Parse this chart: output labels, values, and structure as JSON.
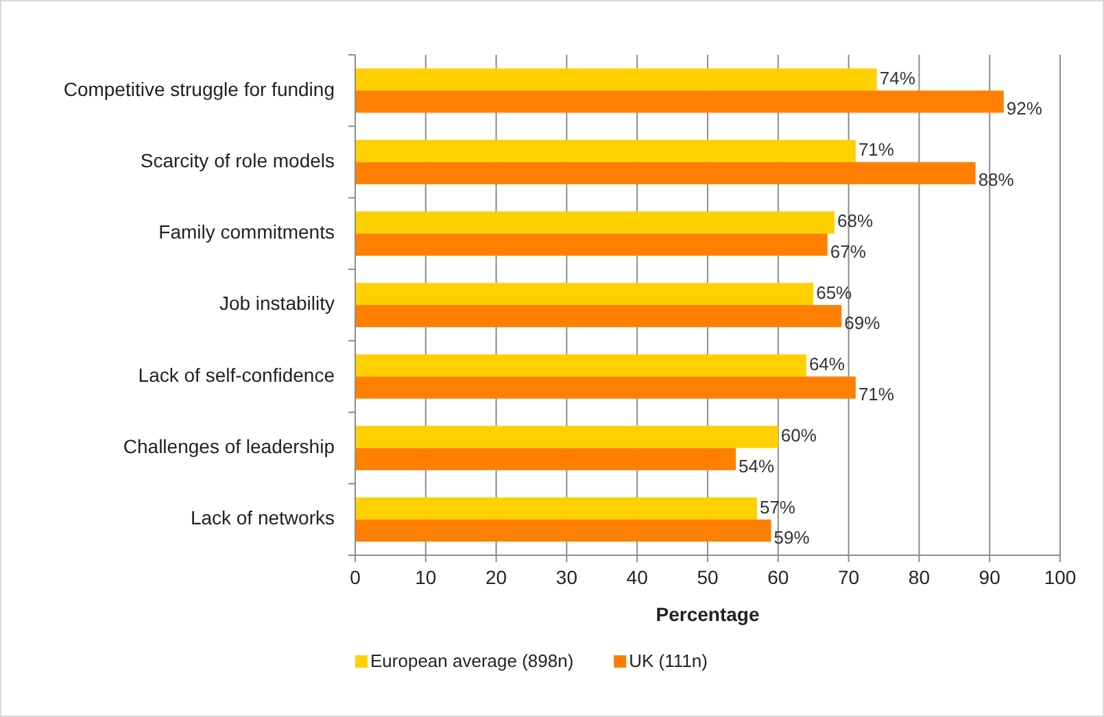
{
  "chart_data": {
    "type": "bar",
    "orientation": "horizontal",
    "xlabel": "Percentage",
    "categories": [
      "Competitive struggle for funding",
      "Scarcity of role models",
      "Family commitments",
      "Job instability",
      "Lack of self-confidence",
      "Challenges of leadership",
      "Lack of networks"
    ],
    "series": [
      {
        "name": "European average (898n)",
        "color": "#ffd000",
        "values": [
          74,
          71,
          68,
          65,
          64,
          60,
          57
        ],
        "value_labels": [
          "74%",
          "71%",
          "68%",
          "65%",
          "64%",
          "60%",
          "57%"
        ]
      },
      {
        "name": "UK (111n)",
        "color": "#ff8000",
        "values": [
          92,
          88,
          67,
          69,
          71,
          54,
          59
        ],
        "value_labels": [
          "92%",
          "88%",
          "67%",
          "69%",
          "71%",
          "54%",
          "59%"
        ]
      }
    ],
    "xlim": [
      0,
      100
    ],
    "xticks": [
      0,
      10,
      20,
      30,
      40,
      50,
      60,
      70,
      80,
      90,
      100
    ],
    "grid": "x",
    "legend": "bottom"
  }
}
